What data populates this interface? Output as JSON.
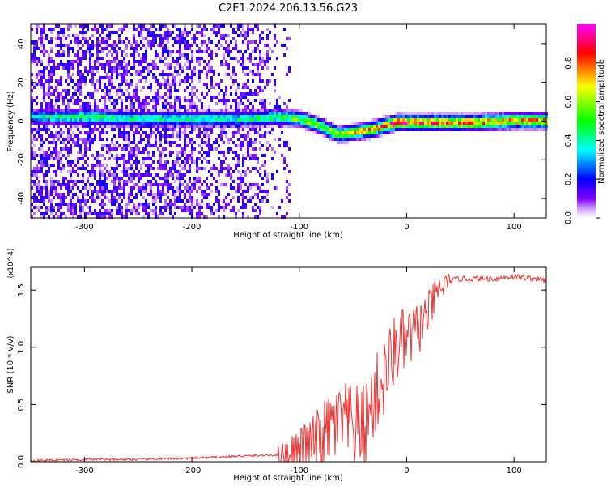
{
  "title": "C2E1.2024.206.13.56.G23",
  "chart_data": [
    {
      "type": "heatmap",
      "xlabel": "Height of straight line (km)",
      "ylabel": "Frequency (Hz)",
      "xlim": [
        -350,
        130
      ],
      "ylim": [
        -50,
        50
      ],
      "xticks": [
        -300,
        -200,
        -100,
        0,
        100
      ],
      "yticks": [
        -40,
        -20,
        0,
        20,
        40
      ],
      "xtick_labels": [
        "-300",
        "-200",
        "-100",
        "0",
        "100"
      ],
      "ytick_labels": [
        "-40",
        "-20",
        "0",
        "20",
        "40"
      ],
      "colorbar": {
        "label": "Normalized spectral amplitude",
        "range": [
          0,
          1
        ],
        "ticks": [
          0.0,
          0.2,
          0.4,
          0.6,
          0.8
        ],
        "tick_labels": [
          "0.0",
          "0.2",
          "0.4",
          "0.6",
          "0.8"
        ],
        "colors": [
          "#ffffff",
          "#8000ff",
          "#0000ff",
          "#00ffff",
          "#00ff00",
          "#ffff00",
          "#ff0000",
          "#ff00ff"
        ]
      },
      "ridge": [
        {
          "x": -350,
          "freq": 3,
          "amp": 0.35
        },
        {
          "x": -300,
          "freq": 3,
          "amp": 0.45
        },
        {
          "x": -250,
          "freq": 2,
          "amp": 0.4
        },
        {
          "x": -200,
          "freq": 2,
          "amp": 0.4
        },
        {
          "x": -150,
          "freq": 2,
          "amp": 0.4
        },
        {
          "x": -120,
          "freq": 3,
          "amp": 0.5
        },
        {
          "x": -100,
          "freq": 2,
          "amp": 0.55
        },
        {
          "x": -80,
          "freq": -2,
          "amp": 0.6
        },
        {
          "x": -65,
          "freq": -6,
          "amp": 0.6
        },
        {
          "x": -50,
          "freq": -5,
          "amp": 0.65
        },
        {
          "x": -30,
          "freq": -3,
          "amp": 0.75
        },
        {
          "x": -10,
          "freq": 0,
          "amp": 0.85
        },
        {
          "x": 20,
          "freq": 0,
          "amp": 0.8
        },
        {
          "x": 60,
          "freq": 0,
          "amp": 0.75
        },
        {
          "x": 100,
          "freq": 1,
          "amp": 0.75
        },
        {
          "x": 130,
          "freq": 1,
          "amp": 0.7
        }
      ]
    },
    {
      "type": "line",
      "xlabel": "Height of straight line (km)",
      "ylabel": "SNR (10 * v/v)",
      "y_multiplier": "(x10^4)",
      "xlim": [
        -350,
        130
      ],
      "ylim": [
        0,
        1.7
      ],
      "xticks": [
        -300,
        -200,
        -100,
        0,
        100
      ],
      "yticks": [
        0.0,
        0.5,
        1.0,
        1.5
      ],
      "xtick_labels": [
        "-300",
        "-200",
        "-100",
        "0",
        "100"
      ],
      "ytick_labels": [
        "0.0",
        "0.5",
        "1.0",
        "1.5"
      ],
      "series": [
        {
          "color": "#ee3333",
          "x": [
            -350,
            -300,
            -250,
            -200,
            -150,
            -120,
            -100,
            -90,
            -80,
            -70,
            -60,
            -50,
            -40,
            -30,
            -20,
            -10,
            0,
            10,
            20,
            30,
            40,
            50,
            60,
            80,
            100,
            120,
            130
          ],
          "y": [
            0.01,
            0.02,
            0.02,
            0.03,
            0.05,
            0.06,
            0.1,
            0.15,
            0.2,
            0.3,
            0.35,
            0.3,
            0.3,
            0.55,
            0.75,
            1.0,
            1.05,
            1.15,
            1.3,
            1.5,
            1.58,
            1.6,
            1.6,
            1.6,
            1.62,
            1.6,
            1.58
          ]
        }
      ]
    }
  ]
}
